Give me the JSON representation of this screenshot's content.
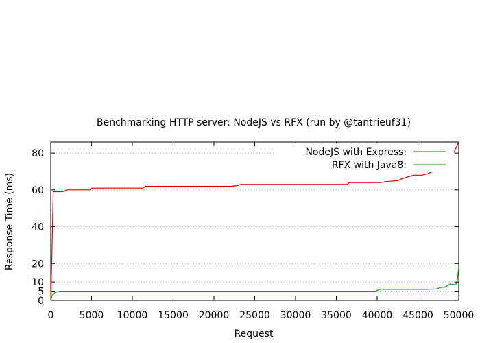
{
  "chart_data": {
    "type": "line",
    "title": "Benchmarking HTTP server: NodeJS vs RFX (run by @tantrieuf31)",
    "xlabel": "Request",
    "ylabel": "Response Time (ms)",
    "xlim": [
      0,
      50000
    ],
    "ylim": [
      0,
      86
    ],
    "xticks": [
      0,
      5000,
      10000,
      15000,
      20000,
      25000,
      30000,
      35000,
      40000,
      45000,
      50000
    ],
    "yticks": [
      0,
      5,
      10,
      20,
      40,
      60,
      80
    ],
    "grid": "y-only",
    "legend_position": "top-right",
    "series": [
      {
        "name": "NodeJS with Express:",
        "color": "#e00000",
        "x": [
          0,
          120,
          300,
          600,
          1500,
          2000,
          4800,
          5000,
          8400,
          8600,
          11300,
          11600,
          22200,
          23000,
          23200,
          36300,
          36600,
          40500,
          41000,
          42500,
          43000,
          43700,
          44500,
          45500,
          46300,
          47000,
          47700,
          48300,
          48900,
          49400,
          49800,
          50000
        ],
        "y": [
          0,
          20,
          59,
          59,
          59,
          60,
          60,
          61,
          61,
          61,
          61,
          62,
          62,
          62.5,
          63,
          63,
          64,
          64,
          64.5,
          65,
          66,
          67,
          68,
          68,
          69,
          70.5,
          72.5,
          75,
          77.5,
          80.5,
          84,
          86
        ]
      },
      {
        "name": "RFX with Java8:",
        "color": "#00a000",
        "x": [
          0,
          200,
          600,
          1200,
          2000,
          10000,
          20000,
          30000,
          39800,
          40300,
          46000,
          47300,
          47700,
          48300,
          48600,
          49000,
          49400,
          49700,
          49850,
          50000
        ],
        "y": [
          0,
          3,
          4.5,
          5,
          5,
          5,
          5,
          5,
          5,
          6,
          6,
          6.2,
          7,
          7.2,
          8,
          9,
          8.5,
          9,
          12,
          18
        ]
      }
    ]
  }
}
